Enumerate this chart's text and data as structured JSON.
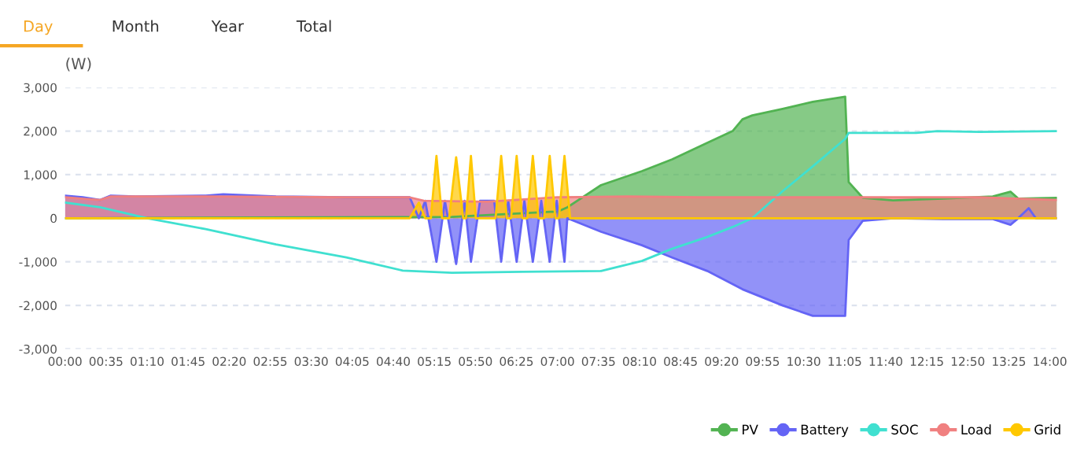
{
  "chart_data": {
    "type": "area",
    "ylabel": "(W)",
    "annotations": [
      "Day",
      "Month",
      "Year",
      "Total"
    ],
    "xlim": [
      0,
      14.1
    ],
    "xticks": [
      {
        "value": 0,
        "label": "00:00"
      },
      {
        "value": 0.5833,
        "label": "00:35"
      },
      {
        "value": 1.1667,
        "label": "01:10"
      },
      {
        "value": 1.75,
        "label": "01:45"
      },
      {
        "value": 2.3333,
        "label": "02:20"
      },
      {
        "value": 2.9167,
        "label": "02:55"
      },
      {
        "value": 3.5,
        "label": "03:30"
      },
      {
        "value": 4.0833,
        "label": "04:05"
      },
      {
        "value": 4.6667,
        "label": "04:40"
      },
      {
        "value": 5.25,
        "label": "05:15"
      },
      {
        "value": 5.8333,
        "label": "05:50"
      },
      {
        "value": 6.4167,
        "label": "06:25"
      },
      {
        "value": 7,
        "label": "07:00"
      },
      {
        "value": 7.5833,
        "label": "07:35"
      },
      {
        "value": 8.1667,
        "label": "08:10"
      },
      {
        "value": 8.75,
        "label": "08:45"
      },
      {
        "value": 9.3333,
        "label": "09:20"
      },
      {
        "value": 9.9167,
        "label": "09:55"
      },
      {
        "value": 10.5,
        "label": "10:30"
      },
      {
        "value": 11.0833,
        "label": "11:05"
      },
      {
        "value": 11.6667,
        "label": "11:40"
      },
      {
        "value": 12.25,
        "label": "12:15"
      },
      {
        "value": 12.8333,
        "label": "12:50"
      },
      {
        "value": 13.4167,
        "label": "13:25"
      },
      {
        "value": 14,
        "label": "14:00"
      }
    ],
    "ylim": [
      -3000,
      3000
    ],
    "yticks": [
      {
        "value": -3000,
        "label": "-3,000"
      },
      {
        "value": -2000,
        "label": "-2,000"
      },
      {
        "value": -1000,
        "label": "-1,000"
      },
      0,
      {
        "value": 1000,
        "label": "1,000"
      },
      {
        "value": 2000,
        "label": "2,000"
      },
      {
        "value": 3000,
        "label": "3,000"
      }
    ],
    "grid": "y",
    "legend": "bottom right",
    "series": [
      {
        "name": "PV",
        "color": "#52b352",
        "x": [
          0,
          5.5,
          6.9,
          7.0,
          7.14,
          7.62,
          8.2,
          8.63,
          9.13,
          9.49,
          9.63,
          9.77,
          10.2,
          10.63,
          11.09,
          11.14,
          11.34,
          11.77,
          12.48,
          13.19,
          13.44,
          13.55,
          14.1
        ],
        "values": [
          0,
          30,
          150,
          150,
          250,
          760,
          1080,
          1350,
          1730,
          2000,
          2270,
          2360,
          2510,
          2670,
          2790,
          830,
          470,
          410,
          450,
          500,
          610,
          450,
          470
        ]
      },
      {
        "name": "Battery",
        "color": "#6464f5",
        "x": [
          0,
          0.25,
          0.5,
          0.65,
          1.0,
          2.0,
          2.25,
          3.0,
          4.0,
          4.9,
          5.03,
          5.12,
          5.28,
          5.4,
          5.56,
          5.68,
          5.77,
          5.9,
          6.1,
          6.2,
          6.3,
          6.42,
          6.53,
          6.65,
          6.77,
          6.89,
          6.99,
          7.1,
          7.14,
          7.62,
          8.2,
          8.63,
          9.13,
          9.63,
          10.2,
          10.63,
          11.09,
          11.14,
          11.34,
          11.77,
          12.48,
          13.19,
          13.44,
          13.55,
          13.7,
          13.8,
          14.1
        ],
        "values": [
          520,
          480,
          420,
          520,
          500,
          520,
          550,
          500,
          480,
          480,
          0,
          400,
          -1000,
          400,
          -1050,
          400,
          -1000,
          400,
          400,
          -1000,
          400,
          -1000,
          400,
          -1000,
          400,
          -1000,
          400,
          -1000,
          0,
          -310,
          -620,
          -900,
          -1210,
          -1630,
          -2000,
          -2240,
          -2240,
          -500,
          -60,
          0,
          -20,
          -20,
          -150,
          0,
          230,
          0,
          0
        ]
      },
      {
        "name": "SOC",
        "type": "line",
        "color": "#40e0d0",
        "x": [
          0,
          0.5,
          1.17,
          2,
          3,
          4,
          4.8,
          5.5,
          6.5,
          7.62,
          8.2,
          8.63,
          9.13,
          9.49,
          9.77,
          10.2,
          10.63,
          11.09,
          11.14,
          12.1,
          12.4,
          13,
          14.1
        ],
        "values": [
          360,
          250,
          0,
          -250,
          -600,
          -900,
          -1200,
          -1250,
          -1230,
          -1210,
          -980,
          -700,
          -430,
          -200,
          0,
          620,
          1190,
          1820,
          1960,
          1960,
          2000,
          1980,
          2000
        ]
      },
      {
        "name": "Load",
        "color": "#f08080",
        "x": [
          0,
          0.3,
          0.5,
          0.65,
          1,
          2,
          3,
          4,
          4.9,
          5.1,
          6,
          7,
          8,
          9,
          10,
          11,
          11.5,
          12,
          13,
          14.1
        ],
        "values": [
          480,
          440,
          420,
          500,
          500,
          500,
          490,
          480,
          480,
          400,
          380,
          480,
          500,
          480,
          480,
          480,
          480,
          480,
          480,
          420
        ]
      },
      {
        "name": "Grid",
        "color": "#ffc800",
        "x": [
          0,
          4.9,
          5.03,
          5.12,
          5.2,
          5.28,
          5.36,
          5.46,
          5.56,
          5.66,
          5.7,
          5.77,
          5.84,
          6.12,
          6.2,
          6.28,
          6.34,
          6.42,
          6.5,
          6.57,
          6.65,
          6.73,
          6.81,
          6.89,
          6.97,
          7.02,
          7.1,
          7.18,
          14.1
        ],
        "values": [
          0,
          0,
          360,
          0,
          0,
          1430,
          0,
          0,
          1400,
          0,
          0,
          1430,
          0,
          0,
          1430,
          0,
          0,
          1430,
          0,
          0,
          1430,
          0,
          0,
          1430,
          0,
          0,
          1430,
          0,
          0
        ]
      }
    ]
  }
}
